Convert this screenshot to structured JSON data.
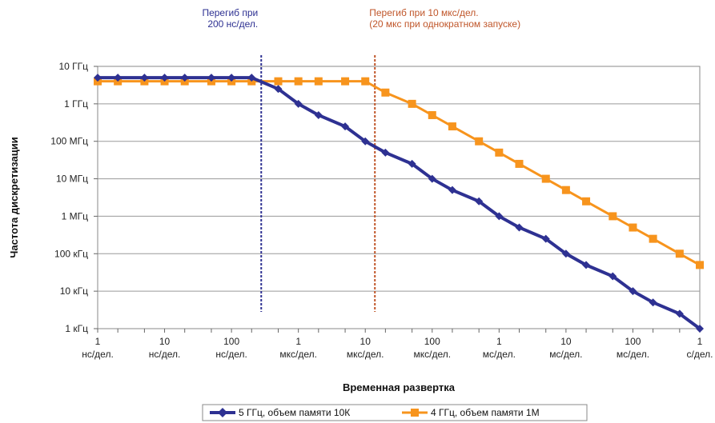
{
  "chart_data": {
    "type": "line",
    "ylabel": "Частота дискретизации",
    "xlabel": "Временная развертка",
    "x_scale": "log",
    "y_scale": "log",
    "grid": true,
    "legend_position": "bottom",
    "y_ticks": [
      {
        "value": 10000000000.0,
        "label": "10 ГГц"
      },
      {
        "value": 1000000000.0,
        "label": "1 ГГц"
      },
      {
        "value": 100000000.0,
        "label": "100 МГц"
      },
      {
        "value": 10000000.0,
        "label": "10 МГц"
      },
      {
        "value": 1000000.0,
        "label": "1 МГц"
      },
      {
        "value": 100000.0,
        "label": "100 кГц"
      },
      {
        "value": 10000.0,
        "label": "10 кГц"
      },
      {
        "value": 1000.0,
        "label": "1 кГц"
      }
    ],
    "x_ticks": [
      {
        "value": 1e-09,
        "label1": "1",
        "label2": "нс/дел."
      },
      {
        "value": 1e-08,
        "label1": "10",
        "label2": "нс/дел."
      },
      {
        "value": 1e-07,
        "label1": "100",
        "label2": "нс/дел."
      },
      {
        "value": 1e-06,
        "label1": "1",
        "label2": "мкс/дел."
      },
      {
        "value": 1e-05,
        "label1": "10",
        "label2": "мкс/дел."
      },
      {
        "value": 0.0001,
        "label1": "100",
        "label2": "мкс/дел."
      },
      {
        "value": 0.001,
        "label1": "1",
        "label2": "мс/дел."
      },
      {
        "value": 0.01,
        "label1": "10",
        "label2": "мс/дел."
      },
      {
        "value": 0.1,
        "label1": "100",
        "label2": "мс/дел."
      },
      {
        "value": 1,
        "label1": "1",
        "label2": "с/дел."
      }
    ],
    "series": [
      {
        "name": "5 ГГц, объем памяти 10К",
        "color": "#2e3192",
        "marker": "diamond",
        "x": [
          1e-09,
          2e-09,
          5e-09,
          1e-08,
          2e-08,
          5e-08,
          1e-07,
          2e-07,
          5e-07,
          1e-06,
          2e-06,
          5e-06,
          1e-05,
          2e-05,
          5e-05,
          0.0001,
          0.0002,
          0.0005,
          0.001,
          0.002,
          0.005,
          0.01,
          0.02,
          0.05,
          0.1,
          0.2,
          0.5,
          1
        ],
        "y": [
          5000000000.0,
          5000000000.0,
          5000000000.0,
          5000000000.0,
          5000000000.0,
          5000000000.0,
          5000000000.0,
          5000000000.0,
          2500000000.0,
          1000000000.0,
          500000000.0,
          250000000.0,
          100000000.0,
          50000000.0,
          25000000.0,
          10000000.0,
          5000000.0,
          2500000.0,
          1000000.0,
          500000.0,
          250000.0,
          100000.0,
          50000.0,
          25000.0,
          10000.0,
          5000.0,
          2500.0,
          1000.0
        ]
      },
      {
        "name": "4 ГГц, объем памяти 1М",
        "color": "#f7941d",
        "marker": "square",
        "x": [
          1e-09,
          2e-09,
          5e-09,
          1e-08,
          2e-08,
          5e-08,
          1e-07,
          2e-07,
          5e-07,
          1e-06,
          2e-06,
          5e-06,
          1e-05,
          2e-05,
          5e-05,
          0.0001,
          0.0002,
          0.0005,
          0.001,
          0.002,
          0.005,
          0.01,
          0.02,
          0.05,
          0.1,
          0.2,
          0.5,
          1
        ],
        "y": [
          4000000000.0,
          4000000000.0,
          4000000000.0,
          4000000000.0,
          4000000000.0,
          4000000000.0,
          4000000000.0,
          4000000000.0,
          4000000000.0,
          4000000000.0,
          4000000000.0,
          4000000000.0,
          4000000000.0,
          2000000000.0,
          1000000000.0,
          500000000.0,
          250000000.0,
          100000000.0,
          50000000.0,
          25000000.0,
          10000000.0,
          5000000.0,
          2500000.0,
          1000000.0,
          500000.0,
          250000.0,
          100000.0,
          50000.0
        ]
      }
    ],
    "annotations": [
      {
        "x": 2e-07,
        "text": [
          "Перегиб при",
          "200 нс/дел."
        ],
        "color": "#2e3192"
      },
      {
        "x": 1e-05,
        "text": [
          "Перегиб при 10 мкс/дел.",
          "(20 мкс при однократном запуске)"
        ],
        "color": "#c0562a"
      }
    ]
  }
}
